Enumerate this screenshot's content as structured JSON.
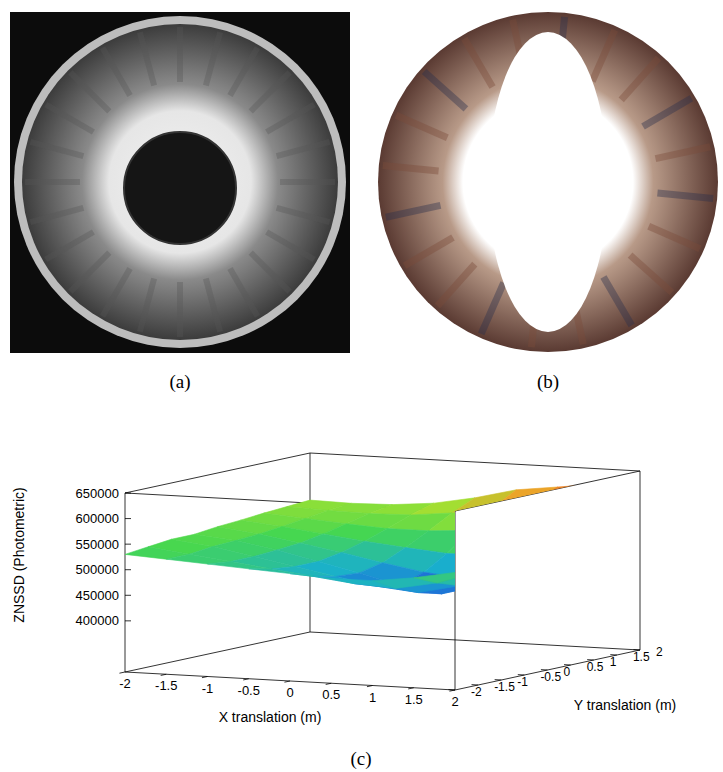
{
  "panels": [
    "(a)",
    "(b)",
    "(c)"
  ],
  "chart_data": {
    "type": "surface",
    "x_label": "X translation (m)",
    "y_label": "Y translation (m)",
    "z_label": "ZNSSD (Photometric)",
    "x": [
      -2,
      -1.5,
      -1,
      -0.5,
      0,
      0.5,
      1,
      1.5,
      2
    ],
    "y": [
      -2,
      -1.5,
      -1,
      -0.5,
      0,
      0.5,
      1,
      1.5,
      2
    ],
    "values": [
      [
        530000,
        525000,
        520000,
        515000,
        510000,
        505000,
        505000,
        515000,
        530000
      ],
      [
        535000,
        525000,
        515000,
        505000,
        495000,
        485000,
        480000,
        495000,
        520000
      ],
      [
        540000,
        530000,
        515000,
        500000,
        485000,
        470000,
        462000,
        480000,
        515000
      ],
      [
        540000,
        532000,
        518000,
        500000,
        482000,
        462000,
        450000,
        472000,
        512000
      ],
      [
        545000,
        535000,
        522000,
        508000,
        492000,
        478000,
        470000,
        488000,
        525000
      ],
      [
        548000,
        540000,
        530000,
        520000,
        512000,
        505000,
        505000,
        515000,
        545000
      ],
      [
        552000,
        546000,
        540000,
        535000,
        535000,
        540000,
        548000,
        560000,
        580000
      ],
      [
        555000,
        552000,
        550000,
        552000,
        560000,
        575000,
        590000,
        600000,
        610000
      ],
      [
        558000,
        556000,
        558000,
        565000,
        580000,
        600000,
        610000,
        620000,
        632000
      ]
    ],
    "xlim": [
      -2,
      2
    ],
    "ylim": [
      -2,
      2
    ],
    "zlim": [
      300000,
      650000
    ],
    "xticks": [
      -2,
      -1.5,
      -1,
      -0.5,
      0,
      0.5,
      1,
      1.5,
      2
    ],
    "yticks": [
      -2,
      -1.5,
      -1,
      -0.5,
      0,
      0.5,
      1,
      1.5,
      2
    ],
    "zticks": [
      400000,
      450000,
      500000,
      550000,
      600000,
      650000
    ]
  }
}
